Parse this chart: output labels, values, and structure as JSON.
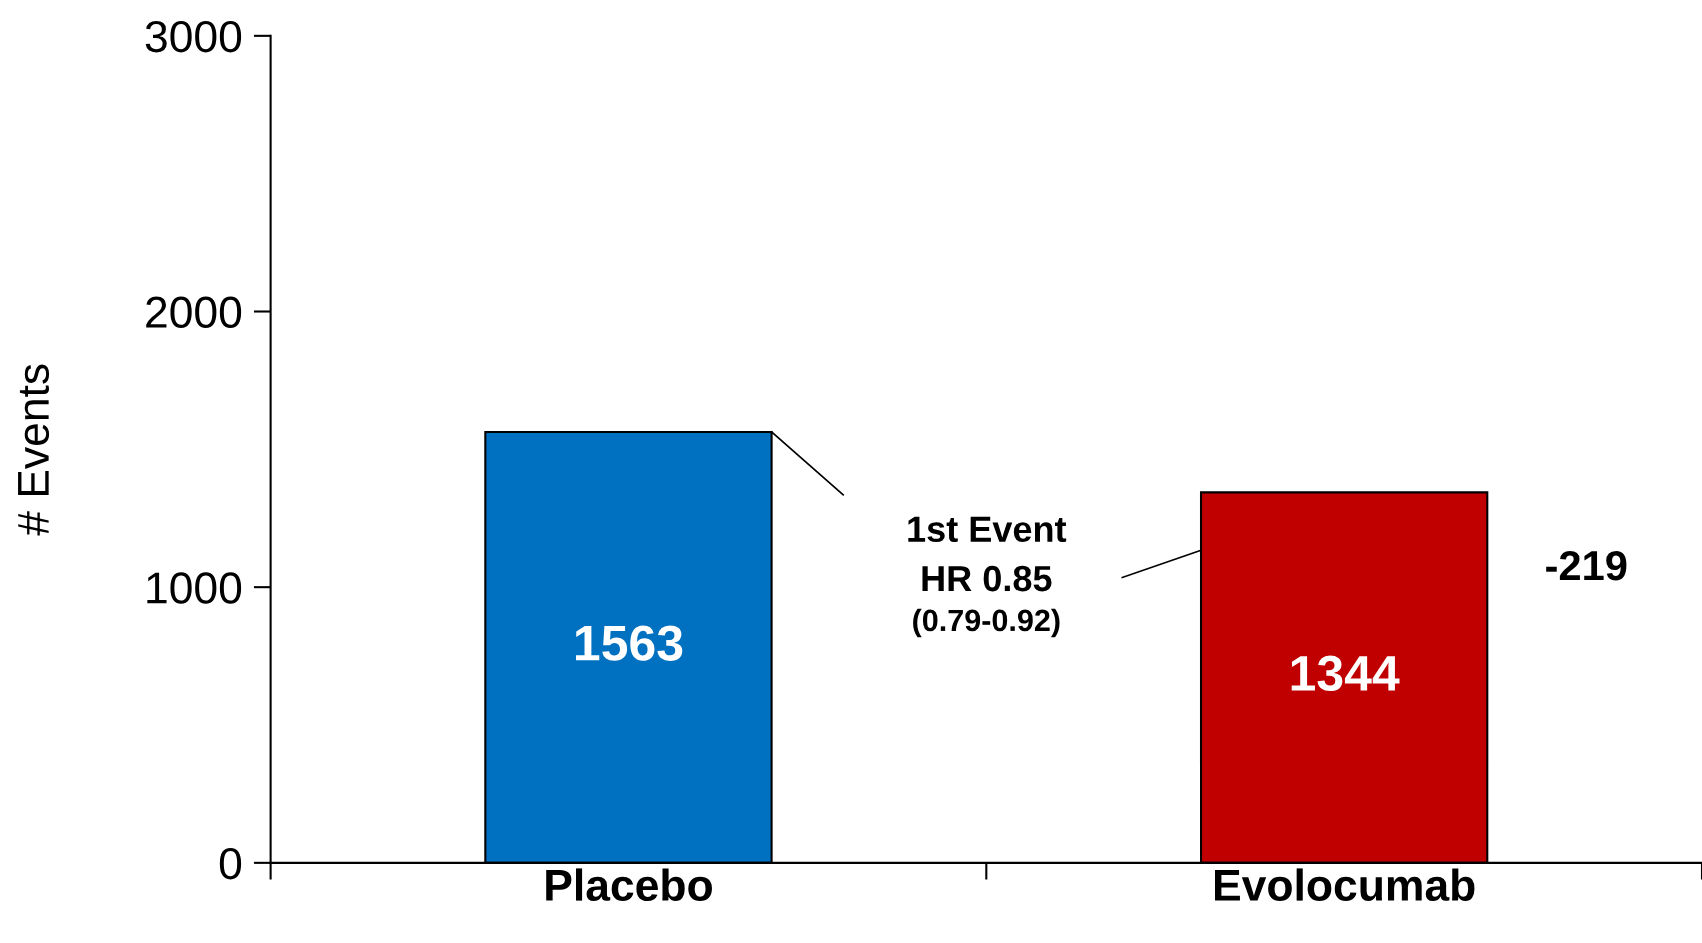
{
  "chart_data": {
    "type": "bar",
    "ylabel": "# Events",
    "categories": [
      "Placebo",
      "Evolocumab"
    ],
    "values": [
      1563,
      1344
    ],
    "colors": [
      "#0070c0",
      "#c00000"
    ],
    "ylim": [
      0,
      3000
    ],
    "yticks": [
      0,
      1000,
      2000,
      3000
    ],
    "data_labels": true,
    "grid": false,
    "annotations": [
      "1st Event\nHR 0.85",
      "(0.79-0.92)",
      "-219"
    ]
  }
}
